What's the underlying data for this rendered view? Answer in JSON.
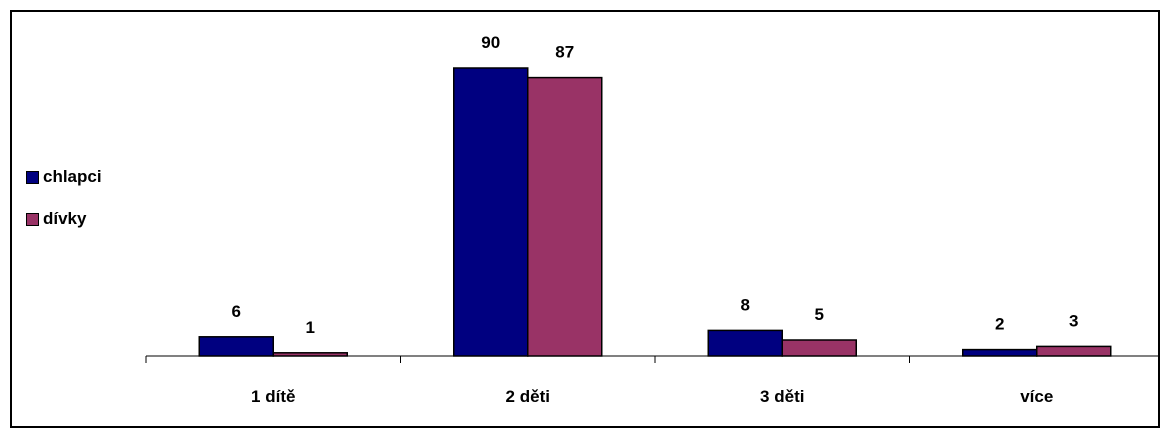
{
  "chart_data": {
    "type": "bar",
    "categories": [
      "1 dítě",
      "2 děti",
      "3 děti",
      "více"
    ],
    "series": [
      {
        "name": "chlapci",
        "values": [
          6,
          90,
          8,
          2
        ],
        "color": "#000080"
      },
      {
        "name": "dívky",
        "values": [
          1,
          87,
          5,
          3
        ],
        "color": "#993366"
      }
    ],
    "ylim": [
      0,
      100
    ],
    "grid": false,
    "legend": "left"
  }
}
